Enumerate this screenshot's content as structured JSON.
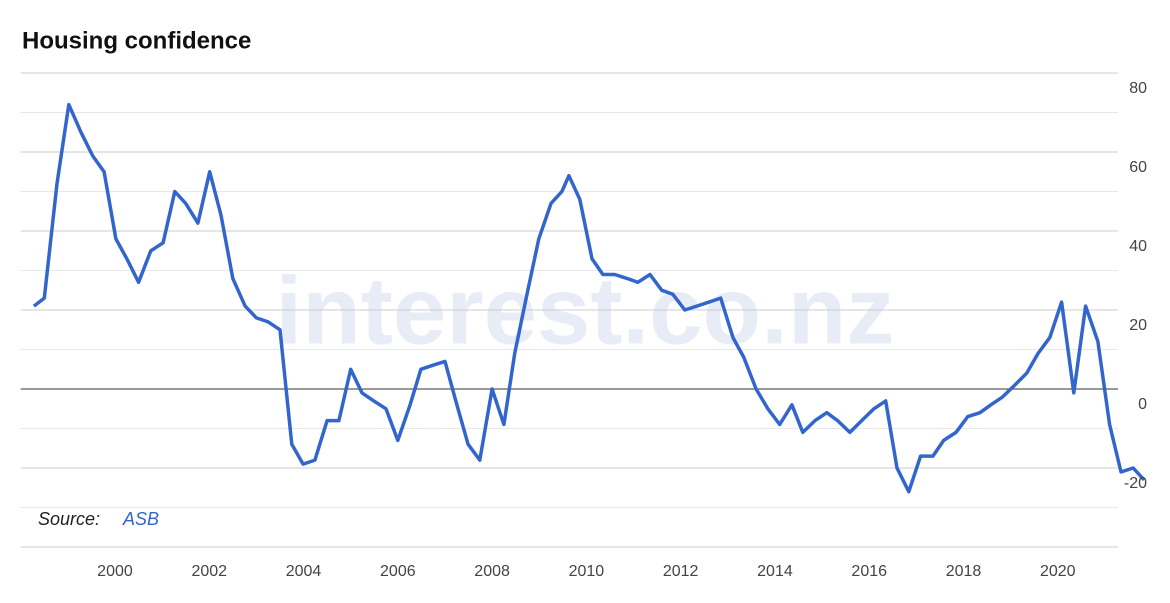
{
  "chart_data": {
    "type": "line",
    "title": "Housing confidence",
    "source_label": "Source:",
    "source": "ASB",
    "watermark": "interest.co.nz",
    "x": [
      1998.28,
      1998.5,
      1998.77,
      1999.02,
      1999.28,
      1999.53,
      1999.77,
      2000.02,
      2000.25,
      2000.5,
      2000.76,
      2001.02,
      2001.27,
      2001.5,
      2001.76,
      2002.01,
      2002.25,
      2002.5,
      2002.76,
      2003.0,
      2003.25,
      2003.5,
      2003.75,
      2003.99,
      2004.24,
      2004.5,
      2004.75,
      2005.0,
      2005.24,
      2005.49,
      2005.75,
      2006.0,
      2006.26,
      2006.49,
      2006.74,
      2007.0,
      2007.23,
      2007.49,
      2007.74,
      2008.0,
      2008.25,
      2008.48,
      2008.74,
      2008.99,
      2009.25,
      2009.48,
      2009.63,
      2009.86,
      2010.12,
      2010.35,
      2010.6,
      2010.86,
      2011.09,
      2011.35,
      2011.6,
      2011.83,
      2012.09,
      2012.34,
      2012.6,
      2012.85,
      2013.11,
      2013.34,
      2013.6,
      2013.85,
      2014.1,
      2014.36,
      2014.59,
      2014.85,
      2015.1,
      2015.33,
      2015.59,
      2015.84,
      2016.1,
      2016.35,
      2016.59,
      2016.84,
      2017.09,
      2017.35,
      2017.58,
      2017.84,
      2018.09,
      2018.35,
      2018.58,
      2018.83,
      2019.09,
      2019.34,
      2019.58,
      2019.83,
      2020.08,
      2020.34,
      2020.59,
      2020.85,
      2021.1,
      2021.34,
      2021.6,
      2021.83
    ],
    "series": [
      {
        "name": "Housing confidence",
        "color": "#3366cc",
        "values": [
          21,
          23,
          52,
          72,
          65,
          59,
          55,
          38,
          33,
          27,
          35,
          37,
          50,
          47,
          42,
          55,
          44,
          28,
          21,
          18,
          17,
          15,
          -14,
          -19,
          -18,
          -8,
          -8,
          5,
          -1,
          -3,
          -5,
          -13,
          -4,
          5,
          6,
          7,
          -3,
          -14,
          -18,
          0,
          -9,
          9,
          24,
          38,
          47,
          50,
          54,
          48,
          33,
          29,
          29,
          28,
          27,
          29,
          25,
          24,
          20,
          21,
          22,
          23,
          13,
          8,
          0,
          -5,
          -9,
          -4,
          -11,
          -8,
          -6,
          -8,
          -11,
          -8,
          -5,
          -3,
          -20,
          -26,
          -17,
          -17,
          -13,
          -11,
          -7,
          -6,
          -4,
          -2,
          1,
          4,
          9,
          13,
          22,
          -1,
          21,
          12,
          -9,
          -21,
          -20,
          -23
        ]
      }
    ],
    "xlim": [
      1998,
      2021.85
    ],
    "xticks": [
      2000,
      2002,
      2004,
      2006,
      2008,
      2010,
      2012,
      2014,
      2016,
      2018,
      2020
    ],
    "ylim": [
      -40,
      80
    ],
    "yticks": [
      -20,
      0,
      20,
      40,
      60,
      80
    ],
    "grid": true
  }
}
